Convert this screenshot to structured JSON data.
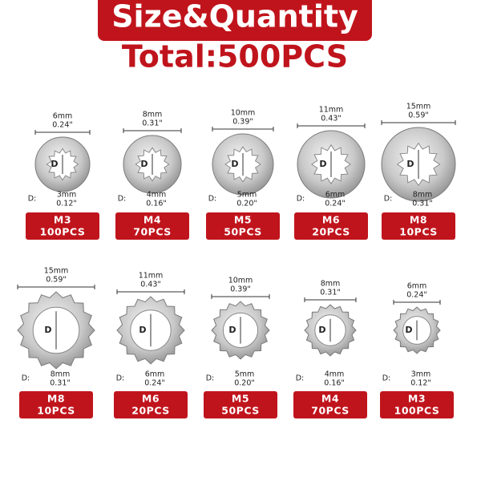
{
  "header": {
    "title": "Size&Quantity",
    "total": "Total:500PCS"
  },
  "labels": {
    "diameter": "D",
    "inner_prefix": "D:"
  },
  "rows": [
    [
      {
        "outer_mm": "6mm",
        "outer_in": "0.24\"",
        "inner_mm": "3mm",
        "inner_in": "0.12\"",
        "size": "M3",
        "qty": "100PCS"
      },
      {
        "outer_mm": "8mm",
        "outer_in": "0.31\"",
        "inner_mm": "4mm",
        "inner_in": "0.16\"",
        "size": "M4",
        "qty": "70PCS"
      },
      {
        "outer_mm": "10mm",
        "outer_in": "0.39\"",
        "inner_mm": "5mm",
        "inner_in": "0.20\"",
        "size": "M5",
        "qty": "50PCS"
      },
      {
        "outer_mm": "11mm",
        "outer_in": "0.43\"",
        "inner_mm": "6mm",
        "inner_in": "0.24\"",
        "size": "M6",
        "qty": "20PCS"
      },
      {
        "outer_mm": "15mm",
        "outer_in": "0.59\"",
        "inner_mm": "8mm",
        "inner_in": "0.31\"",
        "size": "M8",
        "qty": "10PCS"
      }
    ],
    [
      {
        "outer_mm": "15mm",
        "outer_in": "0.59\"",
        "inner_mm": "8mm",
        "inner_in": "0.31\"",
        "size": "M8",
        "qty": "10PCS"
      },
      {
        "outer_mm": "11mm",
        "outer_in": "0.43\"",
        "inner_mm": "6mm",
        "inner_in": "0.24\"",
        "size": "M6",
        "qty": "20PCS"
      },
      {
        "outer_mm": "10mm",
        "outer_in": "0.39\"",
        "inner_mm": "5mm",
        "inner_in": "0.20\"",
        "size": "M5",
        "qty": "50PCS"
      },
      {
        "outer_mm": "8mm",
        "outer_in": "0.31\"",
        "inner_mm": "4mm",
        "inner_in": "0.16\"",
        "size": "M4",
        "qty": "70PCS"
      },
      {
        "outer_mm": "6mm",
        "outer_in": "0.24\"",
        "inner_mm": "3mm",
        "inner_in": "0.12\"",
        "size": "M3",
        "qty": "100PCS"
      }
    ]
  ]
}
